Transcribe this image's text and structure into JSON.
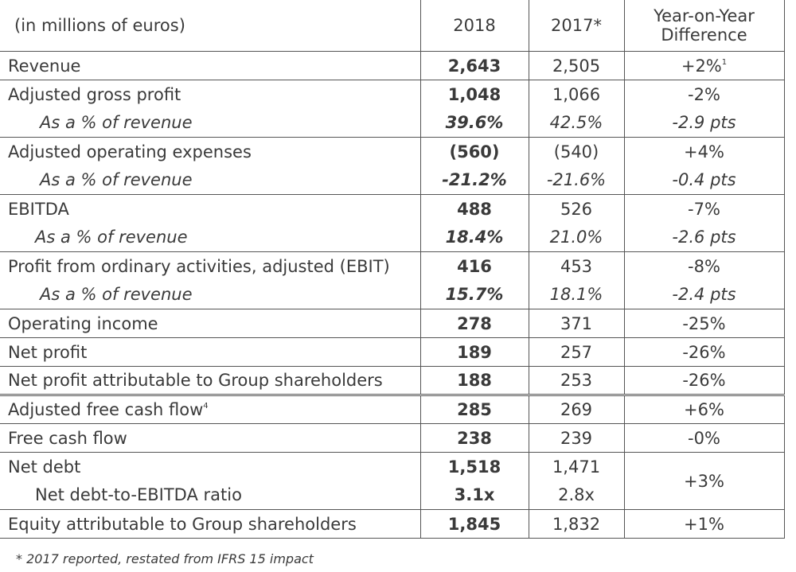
{
  "header": {
    "label": "(in millions of euros)",
    "col_2018": "2018",
    "col_2017": "2017*",
    "col_diff_line1": "Year-on-Year",
    "col_diff_line2": "Difference"
  },
  "rows": [
    {
      "label": "Revenue",
      "v2018": "2,643",
      "v2017": "2,505",
      "diff": "+2%",
      "diff_sup": "1"
    },
    {
      "label": "Adjusted gross profit",
      "v2018": "1,048",
      "v2017": "1,066",
      "diff": "-2%"
    },
    {
      "label": "As a % of revenue",
      "v2018": "39.6%",
      "v2017": "42.5%",
      "diff": "-2.9 pts"
    },
    {
      "label": "Adjusted operating expenses",
      "v2018": "(560)",
      "v2017": "(540)",
      "diff": "+4%"
    },
    {
      "label": "As a % of revenue",
      "v2018": "-21.2%",
      "v2017": "-21.6%",
      "diff": "-0.4 pts"
    },
    {
      "label": "EBITDA",
      "v2018": "488",
      "v2017": "526",
      "diff": "-7%"
    },
    {
      "label": "As a % of revenue",
      "v2018": "18.4%",
      "v2017": "21.0%",
      "diff": "-2.6 pts"
    },
    {
      "label": "Profit from ordinary activities, adjusted (EBIT)",
      "v2018": "416",
      "v2017": "453",
      "diff": "-8%"
    },
    {
      "label": "As a % of revenue",
      "v2018": "15.7%",
      "v2017": "18.1%",
      "diff": "-2.4 pts"
    },
    {
      "label": "Operating income",
      "v2018": "278",
      "v2017": "371",
      "diff": "-25%"
    },
    {
      "label": "Net profit",
      "v2018": "189",
      "v2017": "257",
      "diff": "-26%"
    },
    {
      "label": "Net profit attributable to Group shareholders",
      "v2018": "188",
      "v2017": "253",
      "diff": "-26%"
    },
    {
      "label": "Adjusted free cash flow",
      "label_sup": "4",
      "v2018": "285",
      "v2017": "269",
      "diff": "+6%"
    },
    {
      "label": "Free cash flow",
      "v2018": "238",
      "v2017": "239",
      "diff": "-0%"
    },
    {
      "label": "Net debt",
      "v2018": "1,518",
      "v2017": "1,471",
      "diff": "+3%"
    },
    {
      "label": "Net debt-to-EBITDA ratio",
      "v2018": "3.1x",
      "v2017": "2.8x"
    },
    {
      "label": "Equity attributable to Group shareholders",
      "v2018": "1,845",
      "v2017": "1,832",
      "diff": "+1%"
    }
  ],
  "footnote": "* 2017 reported, restated from IFRS 15 impact"
}
